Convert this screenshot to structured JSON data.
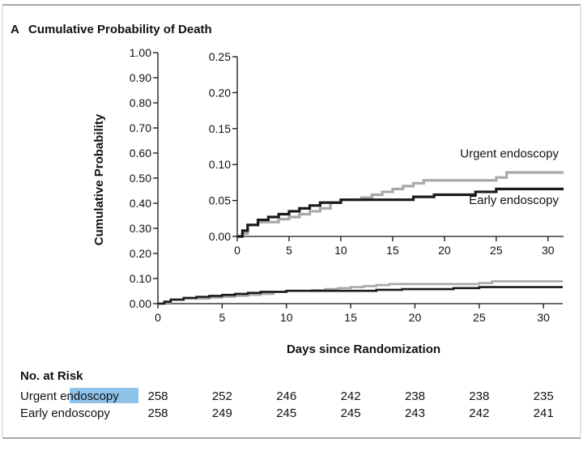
{
  "panel": {
    "letter": "A",
    "title": "Cumulative Probability of Death"
  },
  "chart_data": {
    "type": "line",
    "ylabel": "Cumulative Probability",
    "xlabel": "Days since Randomization",
    "main": {
      "xlim": [
        0,
        31.5
      ],
      "ylim": [
        0,
        1.0
      ],
      "xticks": [
        "0",
        "5",
        "10",
        "15",
        "20",
        "25",
        "30"
      ],
      "yticks": [
        "0.00",
        "0.10",
        "0.20",
        "0.30",
        "0.40",
        "0.50",
        "0.60",
        "0.70",
        "0.80",
        "0.90",
        "1.00"
      ]
    },
    "inset": {
      "xlim": [
        0,
        31.5
      ],
      "ylim": [
        0,
        0.25
      ],
      "xticks": [
        "0",
        "5",
        "10",
        "15",
        "20",
        "25",
        "30"
      ],
      "yticks": [
        "0.00",
        "0.05",
        "0.10",
        "0.15",
        "0.20",
        "0.25"
      ]
    },
    "series": [
      {
        "name": "Urgent endoscopy",
        "color": "#a8a8a8",
        "x": [
          0,
          0.5,
          1,
          2,
          3,
          4,
          5,
          6,
          7,
          8,
          9,
          10,
          12,
          13,
          14,
          15,
          16,
          17,
          18,
          25,
          26,
          31.5
        ],
        "y": [
          0,
          0.004,
          0.016,
          0.02,
          0.02,
          0.024,
          0.027,
          0.031,
          0.035,
          0.039,
          0.047,
          0.051,
          0.054,
          0.058,
          0.062,
          0.066,
          0.07,
          0.074,
          0.078,
          0.082,
          0.089,
          0.089
        ]
      },
      {
        "name": "Early endoscopy",
        "color": "#1a1a1a",
        "x": [
          0,
          0.5,
          1,
          2,
          3,
          4,
          5,
          6,
          7,
          8,
          10,
          16,
          17,
          18,
          19,
          20,
          23,
          24,
          25,
          31.5
        ],
        "y": [
          0,
          0.008,
          0.016,
          0.023,
          0.027,
          0.031,
          0.035,
          0.039,
          0.043,
          0.047,
          0.051,
          0.051,
          0.055,
          0.055,
          0.058,
          0.058,
          0.062,
          0.062,
          0.066,
          0.066
        ]
      }
    ]
  },
  "risk_table": {
    "heading": "No. at Risk",
    "rows": [
      {
        "label_prefix": "Urgent ",
        "label_highlight": "endoscopy",
        "values": [
          "258",
          "252",
          "246",
          "242",
          "238",
          "238",
          "235"
        ]
      },
      {
        "label": "Early endoscopy",
        "values": [
          "258",
          "249",
          "245",
          "245",
          "243",
          "242",
          "241"
        ]
      }
    ]
  }
}
